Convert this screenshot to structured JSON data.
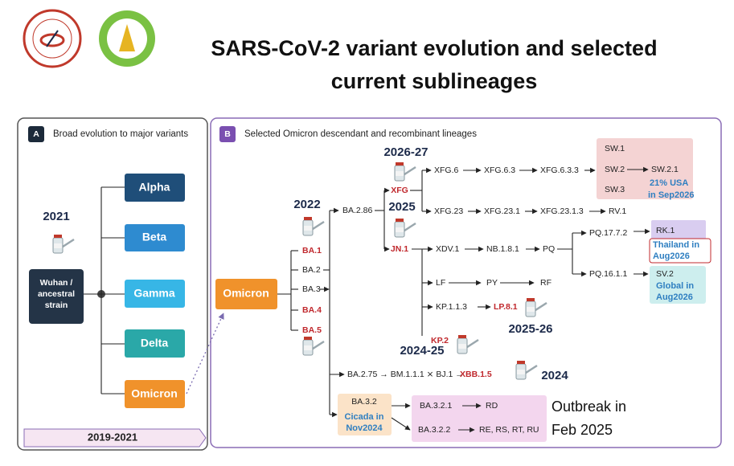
{
  "header": {
    "title_lines": [
      "SARS-CoV-2 variant evolution and selected",
      "current sublineages"
    ]
  },
  "panel_a": {
    "label": "A",
    "title": "Broad evolution to major variants",
    "year": "2021",
    "root_lines": [
      "Wuhan /",
      "ancestral",
      "strain"
    ],
    "variants": [
      "Alpha",
      "Beta",
      "Gamma",
      "Delta",
      "Omicron"
    ],
    "footer": "2019-2021"
  },
  "panel_b": {
    "label": "B",
    "title": "Selected Omicron descendant and recombinant lineages",
    "root": "Omicron",
    "years": [
      "2022",
      "2026-27",
      "2025",
      "2025-26",
      "2024-25",
      "2024"
    ],
    "ba_lineages": [
      "BA.1",
      "BA.2",
      "BA.3",
      "BA.4",
      "BA.5"
    ],
    "ba_2_86": "BA.2.86",
    "xfg": {
      "name": "XFG",
      "branch_6": [
        "XFG.6",
        "XFG.6.3",
        "XFG.6.3.3"
      ],
      "branch_23": [
        "XFG.23",
        "XFG.23.1",
        "XFG.23.1.3",
        "RV.1"
      ],
      "sw": [
        "SW.1",
        "SW.2",
        "SW.2.1",
        "SW.3"
      ],
      "note": [
        "21% USA",
        "in Sep2026"
      ]
    },
    "jn1": {
      "name": "JN.1",
      "chain": [
        "XDV.1",
        "NB.1.8.1",
        "PQ"
      ],
      "pq_a": [
        "PQ.17.7.2",
        "RK.1"
      ],
      "thailand": [
        "Thailand in",
        "Aug2026"
      ],
      "pq_b": [
        "PQ.16.1.1",
        "SV.2"
      ],
      "global": [
        "Global in",
        "Aug2026"
      ],
      "lf": [
        "LF",
        "PY",
        "RF"
      ],
      "kp": [
        "KP.1.1.3",
        "LP.8.1"
      ],
      "kp2": "KP.2"
    },
    "xbb": {
      "chain": "BA.2.75 → BM.1.1.1 ⨯ BJ.1 →",
      "name": "XBB.1.5"
    },
    "ba_3_2": {
      "name": "BA.3.2",
      "note": [
        "Cicada in",
        "Nov2024"
      ],
      "branches": [
        [
          "BA.3.2.1",
          "RD"
        ],
        [
          "BA.3.2.2",
          "RE, RS, RT, RU"
        ]
      ]
    },
    "outbreak": [
      "Outbreak in",
      "Feb 2025"
    ]
  }
}
